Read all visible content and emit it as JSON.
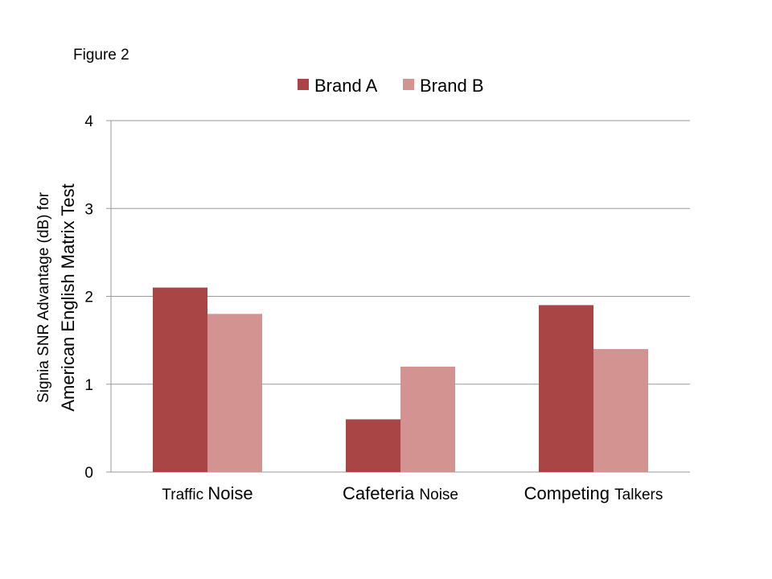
{
  "figure_label": "Figure 2",
  "chart_data": {
    "type": "bar",
    "categories": [
      "Traffic Noise",
      "Cafeteria Noise",
      "Competing Talkers"
    ],
    "category_parts": [
      [
        {
          "text": "Traffic ",
          "emphasis": false
        },
        {
          "text": "Noise",
          "emphasis": true
        }
      ],
      [
        {
          "text": "Cafeteria ",
          "emphasis": true
        },
        {
          "text": "Noise",
          "emphasis": false
        }
      ],
      [
        {
          "text": "Competing ",
          "emphasis": true
        },
        {
          "text": "Talkers",
          "emphasis": false
        }
      ]
    ],
    "series": [
      {
        "name": "Brand A",
        "values": [
          2.1,
          0.6,
          1.9
        ],
        "color": "#a94545"
      },
      {
        "name": "Brand B",
        "values": [
          1.8,
          1.2,
          1.4
        ],
        "color": "#d39391"
      }
    ],
    "ylabel_lines": [
      "Signia SNR Advantage (dB) for",
      "American English Matrix Test"
    ],
    "xlabel": "",
    "ylim": [
      0,
      4
    ],
    "yticks": [
      0,
      1,
      2,
      3,
      4
    ],
    "grid": true,
    "gridline_color": "#9a9a9a",
    "legend_position": "top-center"
  }
}
